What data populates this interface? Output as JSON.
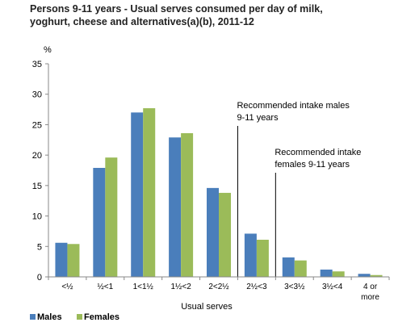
{
  "chart_data": {
    "type": "bar",
    "title_lines": [
      "Persons 9-11 years - Usual serves consumed per day of milk,",
      "yoghurt, cheese and alternatives(a)(b), 2011-12"
    ],
    "ylabel": "%",
    "xlabel": "Usual serves",
    "ylim": [
      0,
      35
    ],
    "yticks": [
      "0",
      "5",
      "10",
      "15",
      "20",
      "25",
      "30",
      "35"
    ],
    "categories": [
      "<½",
      "½<1",
      "1<1½",
      "1½<2",
      "2<2½",
      "2½<3",
      "3<3½",
      "3½<4",
      "4 or more"
    ],
    "category_lines": [
      [
        "<½"
      ],
      [
        "½<1"
      ],
      [
        "1<1½"
      ],
      [
        "1½<2"
      ],
      [
        "2<2½"
      ],
      [
        "2½<3"
      ],
      [
        "3<3½"
      ],
      [
        "3½<4"
      ],
      [
        "4 or",
        "more"
      ]
    ],
    "series": [
      {
        "name": "Males",
        "color": "#4a7ebb",
        "values": [
          5.6,
          17.9,
          27.0,
          22.9,
          14.6,
          7.1,
          3.2,
          1.2,
          0.5
        ]
      },
      {
        "name": "Females",
        "color": "#9bbb59",
        "values": [
          5.4,
          19.6,
          27.7,
          23.6,
          13.8,
          6.1,
          2.7,
          0.9,
          0.3
        ]
      }
    ],
    "annotations": [
      {
        "lines": [
          "Recommended intake males",
          "9-11 years"
        ],
        "category_boundary": 5
      },
      {
        "lines": [
          "Recommended intake",
          "females 9-11 years"
        ],
        "category_boundary": 6
      }
    ],
    "legend_position": "bottom-left",
    "grid": false
  }
}
